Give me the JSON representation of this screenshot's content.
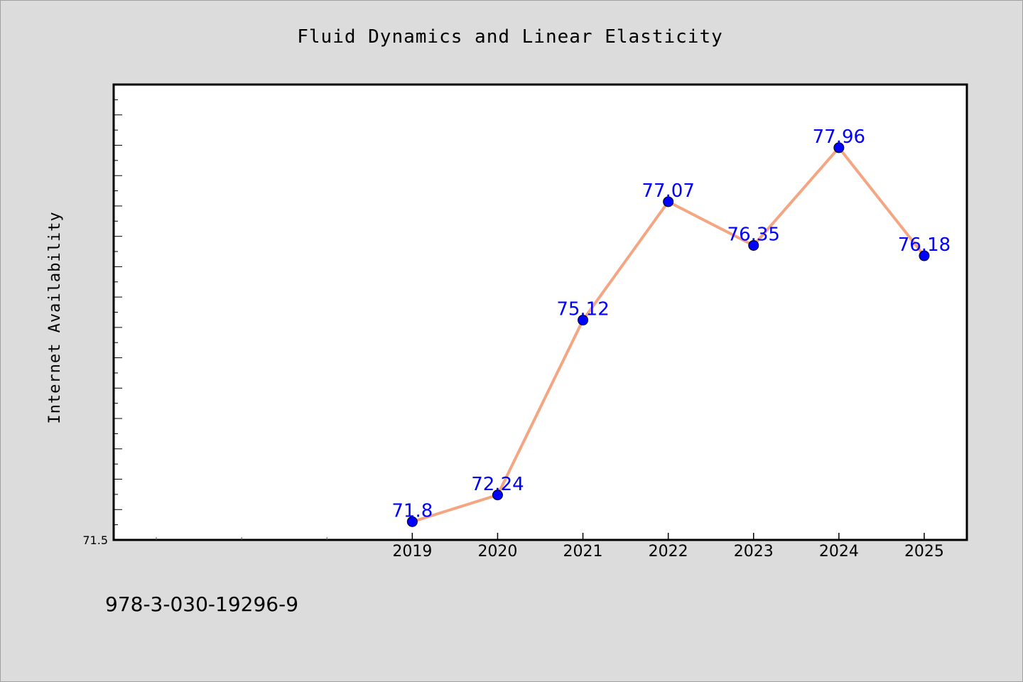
{
  "chart_data": {
    "type": "line",
    "title": "Fluid Dynamics and Linear Elasticity",
    "xlabel": "",
    "ylabel": "Internet Availability",
    "categories": [
      "2019",
      "2020",
      "2021",
      "2022",
      "2023",
      "2024",
      "2025"
    ],
    "series": [
      {
        "values": [
          71.8,
          72.24,
          75.12,
          77.07,
          76.35,
          77.96,
          76.18
        ],
        "labels": [
          "71.8",
          "72.24",
          "75.12",
          "77.07",
          "76.35",
          "77.96",
          "76.18"
        ]
      }
    ],
    "xlim": [
      2015.5,
      2025.5
    ],
    "ylim": [
      71.5,
      79.0
    ],
    "y_tick_labels": [
      "71.5"
    ],
    "grid": false,
    "legend": "none",
    "line_color": "#f4a582",
    "marker_color": "#0000ff",
    "label_color": "#0000ff"
  },
  "footer": {
    "isbn": "978-3-030-19296-9"
  }
}
